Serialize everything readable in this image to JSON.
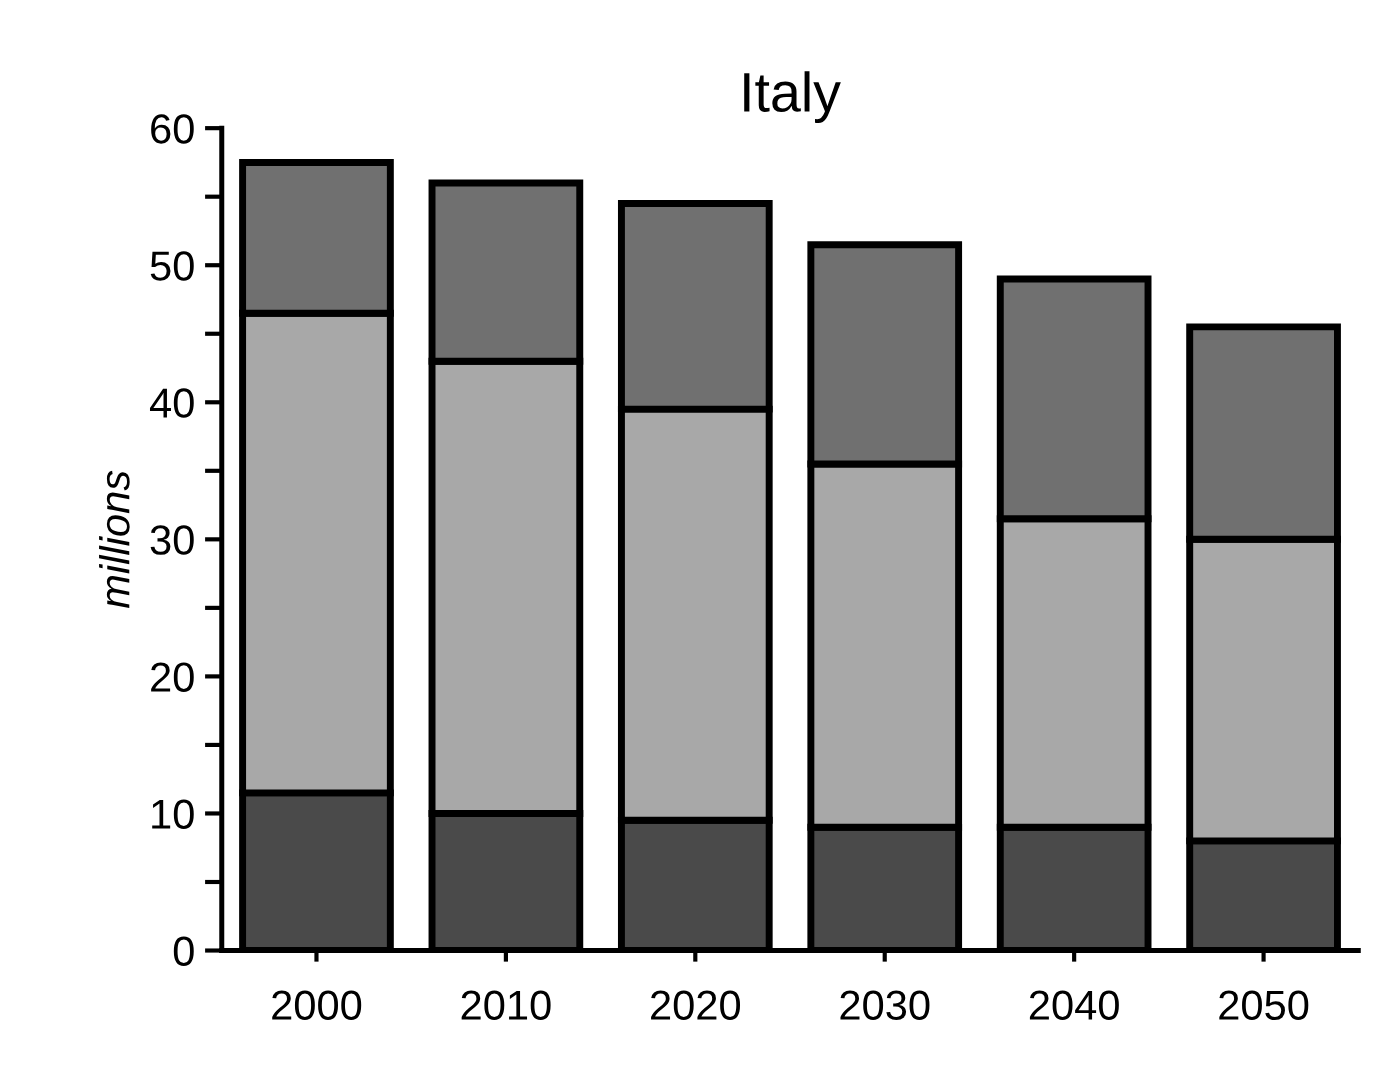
{
  "chart_data": {
    "type": "bar",
    "title": "Italy",
    "ylabel": "millions",
    "stacked": true,
    "categories": [
      "2000",
      "2010",
      "2020",
      "2030",
      "2040",
      "2050"
    ],
    "series": [
      {
        "color": "#4a4a4a",
        "values": [
          11.5,
          10,
          9.5,
          9,
          9,
          8
        ]
      },
      {
        "color": "#a8a8a8",
        "values": [
          35,
          33,
          30,
          26.5,
          22.5,
          22
        ]
      },
      {
        "color": "#707070",
        "values": [
          11,
          13,
          15,
          16,
          17.5,
          15.5
        ]
      }
    ],
    "ylim": [
      0,
      60
    ],
    "yticks": [
      0,
      {
        "value": 5,
        "label": null
      },
      10,
      {
        "value": 15,
        "label": null
      },
      20,
      {
        "value": 25,
        "label": null
      },
      30,
      {
        "value": 35,
        "label": null
      },
      40,
      {
        "value": 45,
        "label": null
      },
      50,
      {
        "value": 55,
        "label": null
      },
      60
    ],
    "grid": false
  }
}
